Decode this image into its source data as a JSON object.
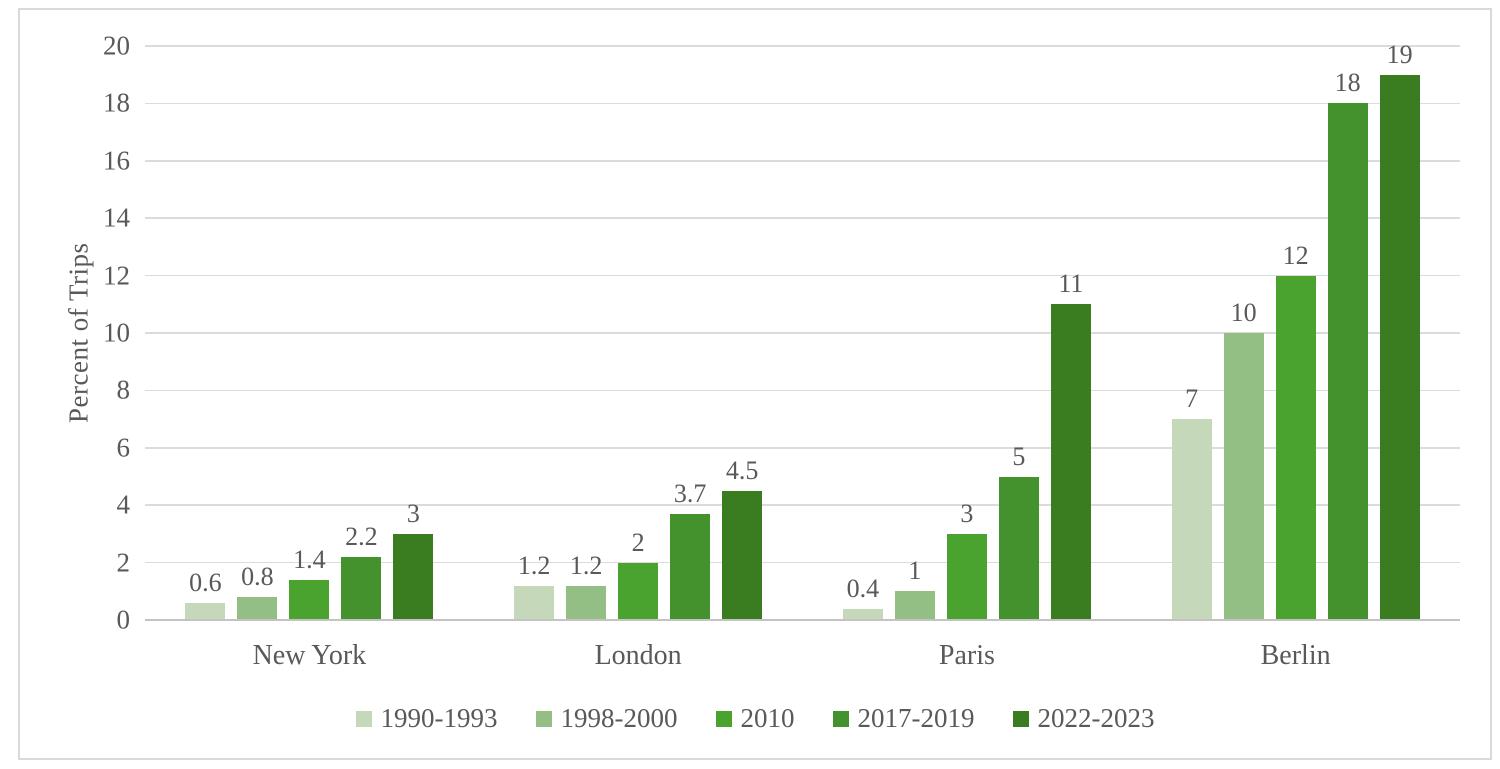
{
  "chart_data": {
    "type": "bar",
    "title": "",
    "xlabel": "",
    "ylabel": "Percent of Trips",
    "ylim": [
      0,
      20
    ],
    "yticks": [
      0,
      2,
      4,
      6,
      8,
      10,
      12,
      14,
      16,
      18,
      20
    ],
    "grid": "horizontal",
    "legend_position": "bottom",
    "categories": [
      "New York",
      "London",
      "Paris",
      "Berlin"
    ],
    "series": [
      {
        "name": "1990-1993",
        "color": "#c6d8ba",
        "values": [
          0.6,
          1.2,
          0.4,
          7
        ],
        "labels": [
          "0.6",
          "1.2",
          "0.4",
          "7"
        ]
      },
      {
        "name": "1998-2000",
        "color": "#94bf84",
        "values": [
          0.8,
          1.2,
          1,
          10
        ],
        "labels": [
          "0.8",
          "1.2",
          "1",
          "10"
        ]
      },
      {
        "name": "2010",
        "color": "#4aa32e",
        "values": [
          1.4,
          2,
          3,
          12
        ],
        "labels": [
          "1.4",
          "2",
          "3",
          "12"
        ]
      },
      {
        "name": "2017-2019",
        "color": "#44922d",
        "values": [
          2.2,
          3.7,
          5,
          18
        ],
        "labels": [
          "2.2",
          "3.7",
          "5",
          "18"
        ]
      },
      {
        "name": "2022-2023",
        "color": "#3a7d20",
        "values": [
          3,
          4.5,
          11,
          19
        ],
        "labels": [
          "3",
          "4.5",
          "11",
          "19"
        ]
      }
    ],
    "colors": {
      "text": "#595959",
      "gridline": "#dbdbdb",
      "axis_line": "#c3c3c3",
      "frame_border": "#d9d9d9",
      "background": "#ffffff"
    }
  }
}
